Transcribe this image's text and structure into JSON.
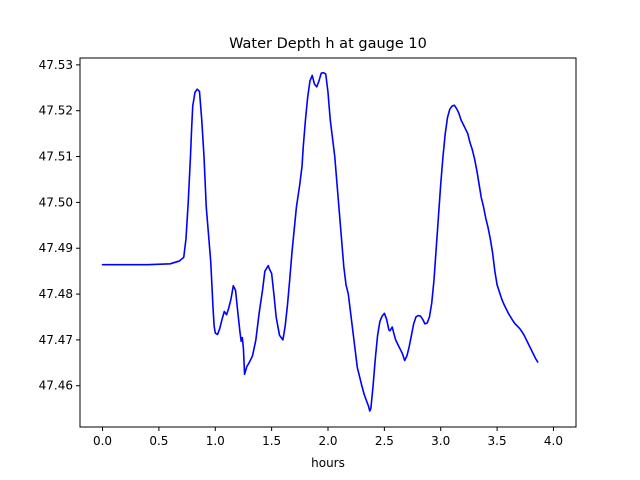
{
  "chart_data": {
    "type": "line",
    "title": "Water Depth h at gauge 10",
    "xlabel": "hours",
    "ylabel": "",
    "xlim": [
      -0.2,
      4.2
    ],
    "ylim": [
      47.451,
      47.5315
    ],
    "x_ticks": [
      0.0,
      0.5,
      1.0,
      1.5,
      2.0,
      2.5,
      3.0,
      3.5,
      4.0
    ],
    "x_tick_labels": [
      "0.0",
      "0.5",
      "1.0",
      "1.5",
      "2.0",
      "2.5",
      "3.0",
      "3.5",
      "4.0"
    ],
    "y_ticks": [
      47.46,
      47.47,
      47.48,
      47.49,
      47.5,
      47.51,
      47.52,
      47.53
    ],
    "y_tick_labels": [
      "47.46",
      "47.47",
      "47.48",
      "47.49",
      "47.50",
      "47.51",
      "47.52",
      "47.53"
    ],
    "grid": false,
    "series": [
      {
        "color": "#0000ff",
        "points": [
          [
            0.0,
            47.4864
          ],
          [
            0.2,
            47.4864
          ],
          [
            0.4,
            47.4864
          ],
          [
            0.6,
            47.4866
          ],
          [
            0.68,
            47.4872
          ],
          [
            0.72,
            47.488
          ],
          [
            0.74,
            47.492
          ],
          [
            0.76,
            47.5
          ],
          [
            0.78,
            47.51
          ],
          [
            0.79,
            47.516
          ],
          [
            0.8,
            47.521
          ],
          [
            0.82,
            47.524
          ],
          [
            0.84,
            47.5247
          ],
          [
            0.86,
            47.5242
          ],
          [
            0.88,
            47.518
          ],
          [
            0.9,
            47.51
          ],
          [
            0.92,
            47.499
          ],
          [
            0.94,
            47.493
          ],
          [
            0.96,
            47.487
          ],
          [
            0.97,
            47.482
          ],
          [
            0.98,
            47.477
          ],
          [
            0.99,
            47.473
          ],
          [
            1.0,
            47.4715
          ],
          [
            1.02,
            47.4712
          ],
          [
            1.04,
            47.4725
          ],
          [
            1.06,
            47.4745
          ],
          [
            1.08,
            47.4762
          ],
          [
            1.1,
            47.4755
          ],
          [
            1.12,
            47.477
          ],
          [
            1.14,
            47.479
          ],
          [
            1.16,
            47.4818
          ],
          [
            1.18,
            47.4808
          ],
          [
            1.2,
            47.476
          ],
          [
            1.22,
            47.4715
          ],
          [
            1.23,
            47.4697
          ],
          [
            1.24,
            47.4705
          ],
          [
            1.25,
            47.468
          ],
          [
            1.26,
            47.4625
          ],
          [
            1.28,
            47.4642
          ],
          [
            1.3,
            47.465
          ],
          [
            1.33,
            47.4665
          ],
          [
            1.36,
            47.47
          ],
          [
            1.39,
            47.476
          ],
          [
            1.42,
            47.481
          ],
          [
            1.44,
            47.485
          ],
          [
            1.46,
            47.4858
          ],
          [
            1.47,
            47.4862
          ],
          [
            1.48,
            47.4855
          ],
          [
            1.5,
            47.4845
          ],
          [
            1.52,
            47.48
          ],
          [
            1.54,
            47.475
          ],
          [
            1.57,
            47.471
          ],
          [
            1.6,
            47.47
          ],
          [
            1.62,
            47.473
          ],
          [
            1.64,
            47.4775
          ],
          [
            1.66,
            47.483
          ],
          [
            1.68,
            47.489
          ],
          [
            1.7,
            47.494
          ],
          [
            1.72,
            47.499
          ],
          [
            1.75,
            47.504
          ],
          [
            1.77,
            47.508
          ],
          [
            1.78,
            47.512
          ],
          [
            1.8,
            47.518
          ],
          [
            1.82,
            47.523
          ],
          [
            1.84,
            47.5265
          ],
          [
            1.86,
            47.5277
          ],
          [
            1.88,
            47.5258
          ],
          [
            1.9,
            47.5252
          ],
          [
            1.92,
            47.5265
          ],
          [
            1.94,
            47.5282
          ],
          [
            1.96,
            47.5283
          ],
          [
            1.98,
            47.528
          ],
          [
            2.0,
            47.524
          ],
          [
            2.02,
            47.518
          ],
          [
            2.04,
            47.514
          ],
          [
            2.06,
            47.51
          ],
          [
            2.08,
            47.504
          ],
          [
            2.1,
            47.498
          ],
          [
            2.12,
            47.492
          ],
          [
            2.14,
            47.486
          ],
          [
            2.16,
            47.482
          ],
          [
            2.18,
            47.48
          ],
          [
            2.2,
            47.476
          ],
          [
            2.22,
            47.472
          ],
          [
            2.24,
            47.468
          ],
          [
            2.26,
            47.464
          ],
          [
            2.28,
            47.462
          ],
          [
            2.3,
            47.46
          ],
          [
            2.32,
            47.4582
          ],
          [
            2.34,
            47.4568
          ],
          [
            2.36,
            47.4555
          ],
          [
            2.37,
            47.4545
          ],
          [
            2.38,
            47.455
          ],
          [
            2.4,
            47.46
          ],
          [
            2.42,
            47.466
          ],
          [
            2.44,
            47.471
          ],
          [
            2.46,
            47.474
          ],
          [
            2.48,
            47.4752
          ],
          [
            2.5,
            47.4758
          ],
          [
            2.52,
            47.4745
          ],
          [
            2.54,
            47.4722
          ],
          [
            2.55,
            47.472
          ],
          [
            2.57,
            47.4728
          ],
          [
            2.58,
            47.4718
          ],
          [
            2.6,
            47.47
          ],
          [
            2.62,
            47.469
          ],
          [
            2.64,
            47.468
          ],
          [
            2.66,
            47.467
          ],
          [
            2.68,
            47.4655
          ],
          [
            2.7,
            47.4665
          ],
          [
            2.72,
            47.4685
          ],
          [
            2.74,
            47.471
          ],
          [
            2.76,
            47.4735
          ],
          [
            2.78,
            47.475
          ],
          [
            2.8,
            47.4753
          ],
          [
            2.82,
            47.4752
          ],
          [
            2.84,
            47.4745
          ],
          [
            2.86,
            47.4735
          ],
          [
            2.88,
            47.4737
          ],
          [
            2.9,
            47.475
          ],
          [
            2.92,
            47.478
          ],
          [
            2.94,
            47.483
          ],
          [
            2.96,
            47.49
          ],
          [
            2.98,
            47.497
          ],
          [
            3.0,
            47.504
          ],
          [
            3.02,
            47.51
          ],
          [
            3.04,
            47.515
          ],
          [
            3.06,
            47.5185
          ],
          [
            3.08,
            47.5203
          ],
          [
            3.1,
            47.521
          ],
          [
            3.12,
            47.5212
          ],
          [
            3.14,
            47.5205
          ],
          [
            3.16,
            47.5195
          ],
          [
            3.18,
            47.518
          ],
          [
            3.2,
            47.517
          ],
          [
            3.22,
            47.516
          ],
          [
            3.24,
            47.515
          ],
          [
            3.26,
            47.513
          ],
          [
            3.28,
            47.5115
          ],
          [
            3.3,
            47.5095
          ],
          [
            3.32,
            47.507
          ],
          [
            3.34,
            47.504
          ],
          [
            3.36,
            47.501
          ],
          [
            3.38,
            47.499
          ],
          [
            3.4,
            47.4965
          ],
          [
            3.42,
            47.4945
          ],
          [
            3.44,
            47.492
          ],
          [
            3.46,
            47.489
          ],
          [
            3.48,
            47.485
          ],
          [
            3.5,
            47.482
          ],
          [
            3.52,
            47.4805
          ],
          [
            3.54,
            47.479
          ],
          [
            3.56,
            47.4778
          ],
          [
            3.58,
            47.4768
          ],
          [
            3.6,
            47.4758
          ],
          [
            3.62,
            47.475
          ],
          [
            3.64,
            47.4742
          ],
          [
            3.66,
            47.4735
          ],
          [
            3.68,
            47.473
          ],
          [
            3.7,
            47.4725
          ],
          [
            3.72,
            47.4718
          ],
          [
            3.74,
            47.471
          ],
          [
            3.76,
            47.47
          ],
          [
            3.78,
            47.469
          ],
          [
            3.8,
            47.468
          ],
          [
            3.82,
            47.467
          ],
          [
            3.84,
            47.466
          ],
          [
            3.86,
            47.4652
          ]
        ]
      }
    ]
  }
}
